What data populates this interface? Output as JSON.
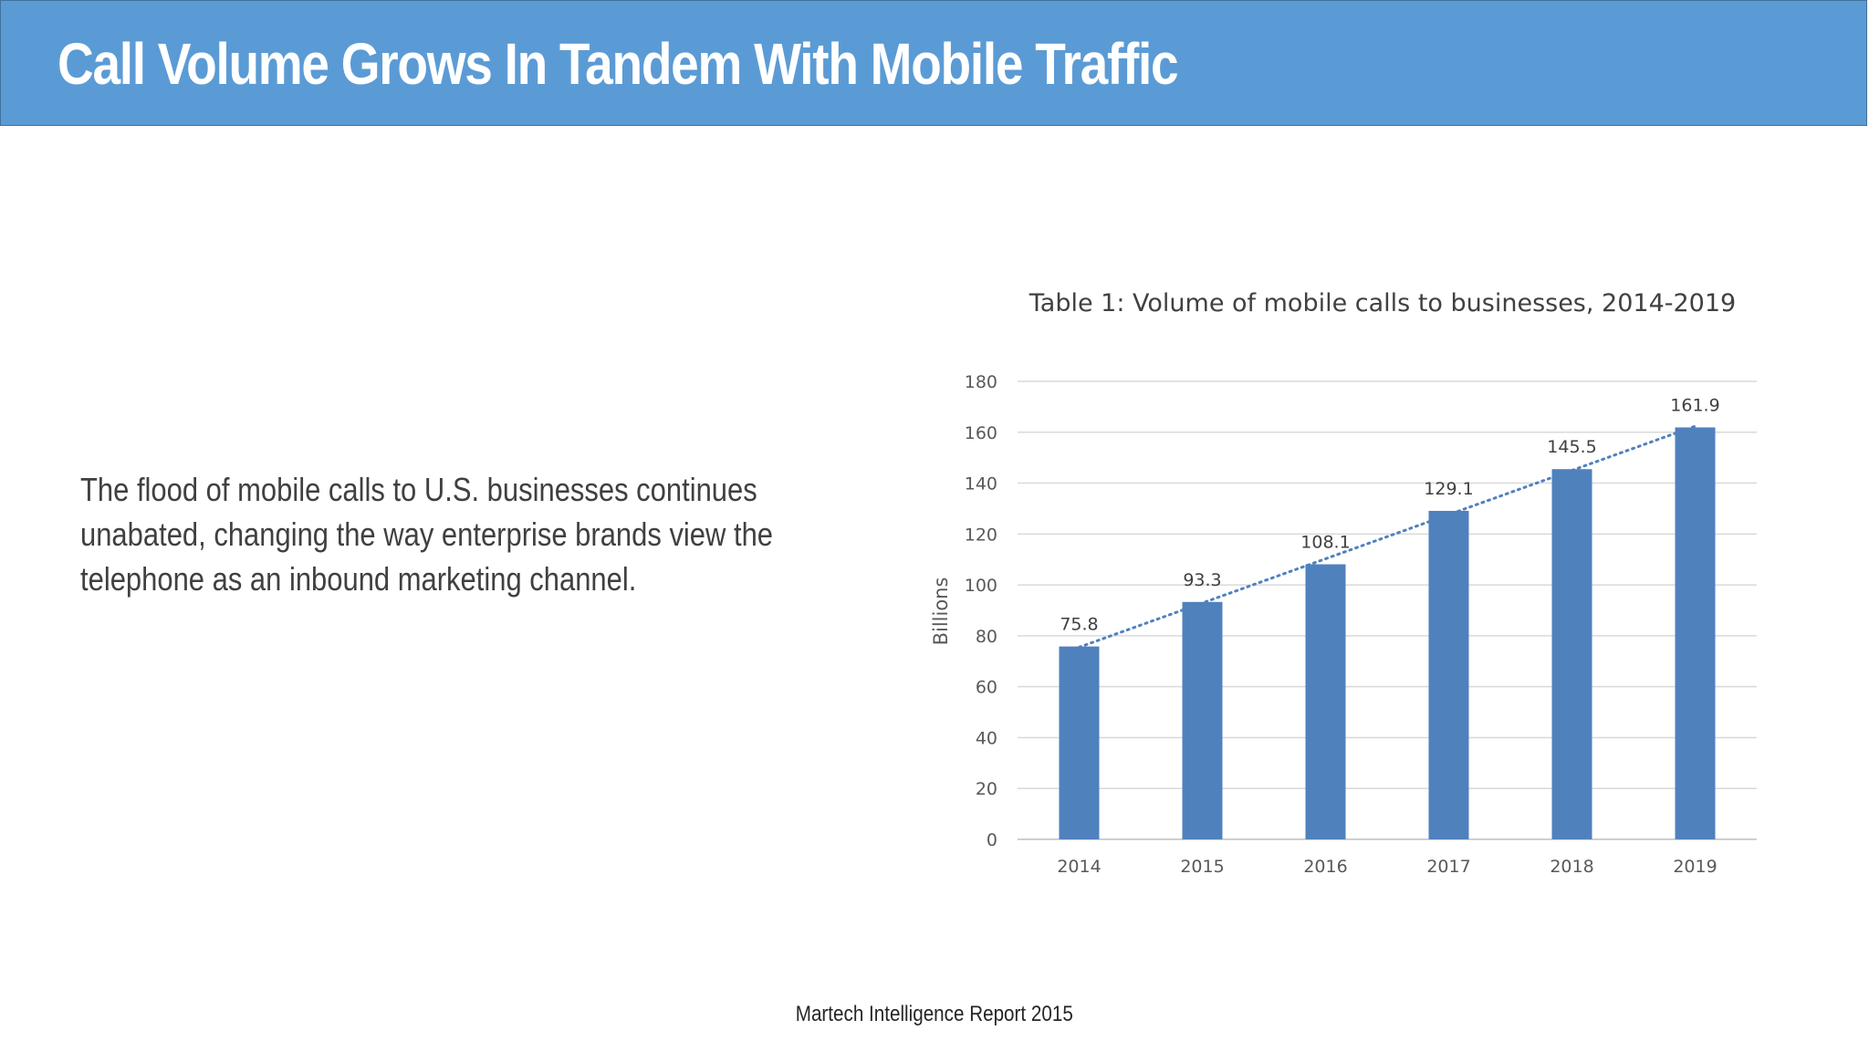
{
  "slide": {
    "title": "Call Volume Grows In Tandem With Mobile Traffic",
    "body": "The flood of mobile calls to U.S. businesses continues unabated, changing the way enterprise brands view the telephone as an inbound marketing channel.",
    "footer": "Martech Intelligence Report 2015",
    "title_bar_color": "#5b9bd5"
  },
  "chart_data": {
    "type": "bar",
    "title": "Table 1: Volume of mobile calls to businesses, 2014-2019",
    "xlabel": "",
    "ylabel": "Billions",
    "categories": [
      "2014",
      "2015",
      "2016",
      "2017",
      "2018",
      "2019"
    ],
    "values": [
      75.8,
      93.3,
      108.1,
      129.1,
      145.5,
      161.9
    ],
    "data_labels": [
      "75.8",
      "93.3",
      "108.1",
      "129.1",
      "145.5",
      "161.9"
    ],
    "ylim": [
      0,
      180
    ],
    "yticks": [
      0,
      20,
      40,
      60,
      80,
      100,
      120,
      140,
      160,
      180
    ],
    "grid": true,
    "legend": "none",
    "trendline": "linear, dotted",
    "bar_color": "#4f81bd",
    "trend_color": "#4f81bd"
  }
}
